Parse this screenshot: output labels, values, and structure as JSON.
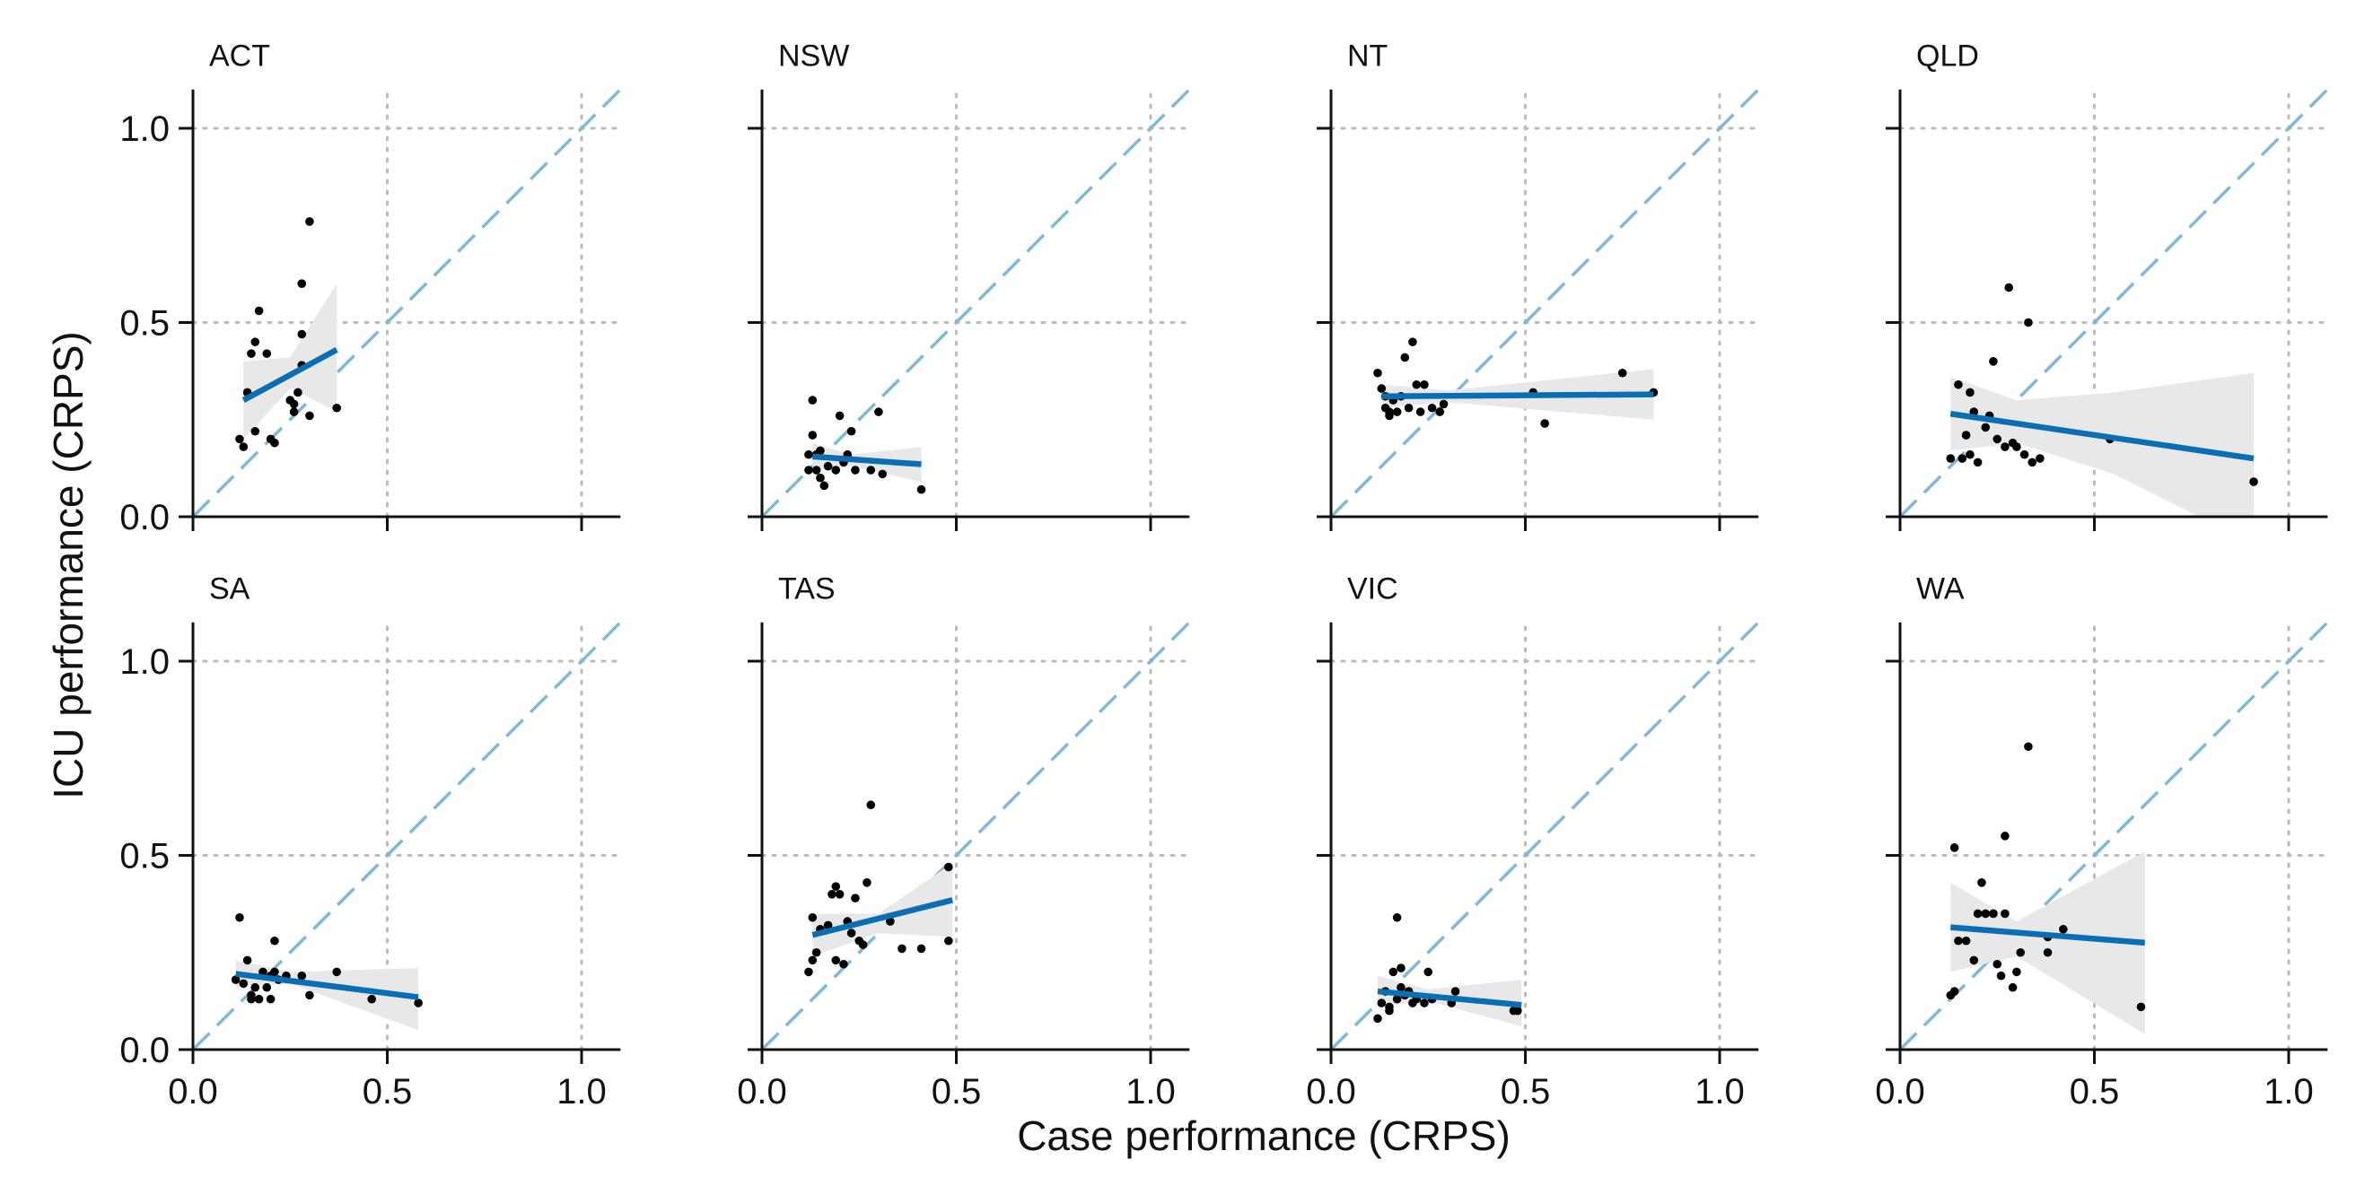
{
  "chart_data": {
    "type": "scatter",
    "layout": "faceted 2x4 small multiples",
    "xlabel": "Case performance (CRPS)",
    "ylabel": "ICU performance (CRPS)",
    "xlim": [
      0,
      1.1
    ],
    "ylim": [
      0,
      1.1
    ],
    "x_ticks": [
      0.0,
      0.5,
      1.0
    ],
    "x_tick_labels": [
      "0.0",
      "0.5",
      "1.0"
    ],
    "y_ticks": [
      0.0,
      0.5,
      1.0
    ],
    "y_tick_labels": [
      "0.0",
      "0.5",
      "1.0"
    ],
    "grid": "dotted at 0.5 and 1.0",
    "reference_line": {
      "slope": 1,
      "intercept": 0,
      "style": "dashed"
    },
    "fit": "linear regression with confidence band",
    "colors": {
      "points": "#000000",
      "fit_line": "#0a6eb4",
      "confidence_band": "#e8e8e8",
      "reference_line": "#7fb8d8",
      "grid": "#bbbbbb",
      "axis": "#111111"
    },
    "panels": [
      {
        "name": "ACT",
        "points": [
          [
            0.12,
            0.2
          ],
          [
            0.13,
            0.18
          ],
          [
            0.14,
            0.32
          ],
          [
            0.15,
            0.42
          ],
          [
            0.16,
            0.45
          ],
          [
            0.16,
            0.22
          ],
          [
            0.17,
            0.53
          ],
          [
            0.19,
            0.42
          ],
          [
            0.2,
            0.2
          ],
          [
            0.21,
            0.19
          ],
          [
            0.25,
            0.3
          ],
          [
            0.26,
            0.27
          ],
          [
            0.26,
            0.29
          ],
          [
            0.27,
            0.32
          ],
          [
            0.28,
            0.39
          ],
          [
            0.28,
            0.6
          ],
          [
            0.28,
            0.47
          ],
          [
            0.3,
            0.76
          ],
          [
            0.3,
            0.26
          ],
          [
            0.37,
            0.28
          ]
        ],
        "fit": {
          "x": [
            0.13,
            0.37
          ],
          "y": [
            0.3,
            0.43
          ]
        },
        "band": {
          "x": [
            0.13,
            0.25,
            0.37
          ],
          "lower": [
            0.2,
            0.33,
            0.27
          ],
          "upper": [
            0.4,
            0.41,
            0.6
          ]
        }
      },
      {
        "name": "NSW",
        "points": [
          [
            0.12,
            0.16
          ],
          [
            0.12,
            0.12
          ],
          [
            0.13,
            0.21
          ],
          [
            0.13,
            0.3
          ],
          [
            0.14,
            0.12
          ],
          [
            0.14,
            0.16
          ],
          [
            0.15,
            0.17
          ],
          [
            0.15,
            0.1
          ],
          [
            0.16,
            0.08
          ],
          [
            0.17,
            0.13
          ],
          [
            0.19,
            0.12
          ],
          [
            0.2,
            0.26
          ],
          [
            0.21,
            0.14
          ],
          [
            0.22,
            0.16
          ],
          [
            0.23,
            0.22
          ],
          [
            0.24,
            0.12
          ],
          [
            0.28,
            0.12
          ],
          [
            0.3,
            0.27
          ],
          [
            0.31,
            0.11
          ],
          [
            0.41,
            0.07
          ]
        ],
        "fit": {
          "x": [
            0.13,
            0.41
          ],
          "y": [
            0.155,
            0.135
          ]
        },
        "band": {
          "x": [
            0.13,
            0.23,
            0.41
          ],
          "lower": [
            0.12,
            0.13,
            0.09
          ],
          "upper": [
            0.19,
            0.16,
            0.18
          ]
        }
      },
      {
        "name": "NT",
        "points": [
          [
            0.12,
            0.37
          ],
          [
            0.13,
            0.33
          ],
          [
            0.14,
            0.31
          ],
          [
            0.14,
            0.28
          ],
          [
            0.15,
            0.27
          ],
          [
            0.15,
            0.26
          ],
          [
            0.16,
            0.3
          ],
          [
            0.17,
            0.27
          ],
          [
            0.18,
            0.31
          ],
          [
            0.19,
            0.41
          ],
          [
            0.2,
            0.28
          ],
          [
            0.21,
            0.45
          ],
          [
            0.22,
            0.34
          ],
          [
            0.23,
            0.27
          ],
          [
            0.24,
            0.34
          ],
          [
            0.26,
            0.28
          ],
          [
            0.28,
            0.27
          ],
          [
            0.29,
            0.29
          ],
          [
            0.52,
            0.32
          ],
          [
            0.55,
            0.24
          ],
          [
            0.75,
            0.37
          ],
          [
            0.83,
            0.32
          ]
        ],
        "fit": {
          "x": [
            0.13,
            0.83
          ],
          "y": [
            0.31,
            0.315
          ]
        },
        "band": {
          "x": [
            0.13,
            0.3,
            0.83
          ],
          "lower": [
            0.28,
            0.295,
            0.25
          ],
          "upper": [
            0.34,
            0.325,
            0.38
          ]
        }
      },
      {
        "name": "QLD",
        "points": [
          [
            0.13,
            0.15
          ],
          [
            0.15,
            0.34
          ],
          [
            0.16,
            0.15
          ],
          [
            0.17,
            0.21
          ],
          [
            0.18,
            0.16
          ],
          [
            0.18,
            0.32
          ],
          [
            0.19,
            0.27
          ],
          [
            0.2,
            0.14
          ],
          [
            0.22,
            0.23
          ],
          [
            0.23,
            0.26
          ],
          [
            0.24,
            0.4
          ],
          [
            0.25,
            0.2
          ],
          [
            0.27,
            0.18
          ],
          [
            0.28,
            0.59
          ],
          [
            0.29,
            0.19
          ],
          [
            0.3,
            0.18
          ],
          [
            0.32,
            0.16
          ],
          [
            0.33,
            0.5
          ],
          [
            0.34,
            0.14
          ],
          [
            0.36,
            0.15
          ],
          [
            0.54,
            0.2
          ],
          [
            0.91,
            0.09
          ]
        ],
        "fit": {
          "x": [
            0.13,
            0.91
          ],
          "y": [
            0.265,
            0.15
          ]
        },
        "band": {
          "x": [
            0.13,
            0.3,
            0.55,
            0.91
          ],
          "lower": [
            0.17,
            0.19,
            0.11,
            -0.07
          ],
          "upper": [
            0.36,
            0.3,
            0.32,
            0.37
          ]
        }
      },
      {
        "name": "SA",
        "points": [
          [
            0.11,
            0.18
          ],
          [
            0.12,
            0.34
          ],
          [
            0.13,
            0.17
          ],
          [
            0.14,
            0.23
          ],
          [
            0.15,
            0.13
          ],
          [
            0.15,
            0.14
          ],
          [
            0.16,
            0.16
          ],
          [
            0.17,
            0.13
          ],
          [
            0.18,
            0.2
          ],
          [
            0.19,
            0.16
          ],
          [
            0.2,
            0.13
          ],
          [
            0.2,
            0.19
          ],
          [
            0.21,
            0.2
          ],
          [
            0.21,
            0.28
          ],
          [
            0.22,
            0.18
          ],
          [
            0.24,
            0.19
          ],
          [
            0.28,
            0.19
          ],
          [
            0.3,
            0.14
          ],
          [
            0.37,
            0.2
          ],
          [
            0.46,
            0.13
          ],
          [
            0.58,
            0.12
          ]
        ],
        "fit": {
          "x": [
            0.11,
            0.58
          ],
          "y": [
            0.195,
            0.135
          ]
        },
        "band": {
          "x": [
            0.11,
            0.25,
            0.58
          ],
          "lower": [
            0.16,
            0.17,
            0.05
          ],
          "upper": [
            0.23,
            0.2,
            0.21
          ]
        }
      },
      {
        "name": "TAS",
        "points": [
          [
            0.12,
            0.2
          ],
          [
            0.13,
            0.23
          ],
          [
            0.13,
            0.34
          ],
          [
            0.14,
            0.25
          ],
          [
            0.15,
            0.31
          ],
          [
            0.17,
            0.32
          ],
          [
            0.18,
            0.4
          ],
          [
            0.19,
            0.42
          ],
          [
            0.19,
            0.23
          ],
          [
            0.2,
            0.4
          ],
          [
            0.21,
            0.22
          ],
          [
            0.22,
            0.33
          ],
          [
            0.23,
            0.3
          ],
          [
            0.24,
            0.39
          ],
          [
            0.25,
            0.28
          ],
          [
            0.26,
            0.27
          ],
          [
            0.27,
            0.43
          ],
          [
            0.28,
            0.63
          ],
          [
            0.33,
            0.33
          ],
          [
            0.36,
            0.26
          ],
          [
            0.41,
            0.26
          ],
          [
            0.48,
            0.28
          ],
          [
            0.48,
            0.47
          ]
        ],
        "fit": {
          "x": [
            0.13,
            0.49
          ],
          "y": [
            0.295,
            0.385
          ]
        },
        "band": {
          "x": [
            0.13,
            0.3,
            0.49
          ],
          "lower": [
            0.24,
            0.3,
            0.29
          ],
          "upper": [
            0.35,
            0.35,
            0.48
          ]
        }
      },
      {
        "name": "VIC",
        "points": [
          [
            0.12,
            0.08
          ],
          [
            0.13,
            0.12
          ],
          [
            0.14,
            0.15
          ],
          [
            0.15,
            0.11
          ],
          [
            0.15,
            0.1
          ],
          [
            0.16,
            0.2
          ],
          [
            0.17,
            0.13
          ],
          [
            0.17,
            0.34
          ],
          [
            0.18,
            0.16
          ],
          [
            0.18,
            0.21
          ],
          [
            0.19,
            0.14
          ],
          [
            0.2,
            0.15
          ],
          [
            0.21,
            0.12
          ],
          [
            0.22,
            0.13
          ],
          [
            0.24,
            0.12
          ],
          [
            0.25,
            0.2
          ],
          [
            0.26,
            0.13
          ],
          [
            0.31,
            0.12
          ],
          [
            0.32,
            0.15
          ],
          [
            0.47,
            0.1
          ],
          [
            0.48,
            0.1
          ]
        ],
        "fit": {
          "x": [
            0.12,
            0.49
          ],
          "y": [
            0.15,
            0.115
          ]
        },
        "band": {
          "x": [
            0.12,
            0.25,
            0.49
          ],
          "lower": [
            0.11,
            0.125,
            0.06
          ],
          "upper": [
            0.19,
            0.155,
            0.18
          ]
        }
      },
      {
        "name": "WA",
        "points": [
          [
            0.13,
            0.14
          ],
          [
            0.14,
            0.52
          ],
          [
            0.14,
            0.15
          ],
          [
            0.15,
            0.28
          ],
          [
            0.17,
            0.28
          ],
          [
            0.19,
            0.23
          ],
          [
            0.2,
            0.35
          ],
          [
            0.21,
            0.43
          ],
          [
            0.22,
            0.35
          ],
          [
            0.24,
            0.35
          ],
          [
            0.25,
            0.22
          ],
          [
            0.26,
            0.19
          ],
          [
            0.27,
            0.35
          ],
          [
            0.27,
            0.55
          ],
          [
            0.29,
            0.16
          ],
          [
            0.3,
            0.2
          ],
          [
            0.31,
            0.25
          ],
          [
            0.33,
            0.78
          ],
          [
            0.38,
            0.25
          ],
          [
            0.38,
            0.29
          ],
          [
            0.42,
            0.31
          ],
          [
            0.62,
            0.11
          ]
        ],
        "fit": {
          "x": [
            0.13,
            0.63
          ],
          "y": [
            0.315,
            0.275
          ]
        },
        "band": {
          "x": [
            0.13,
            0.3,
            0.63
          ],
          "lower": [
            0.2,
            0.24,
            0.04
          ],
          "upper": [
            0.43,
            0.33,
            0.51
          ]
        }
      }
    ]
  }
}
